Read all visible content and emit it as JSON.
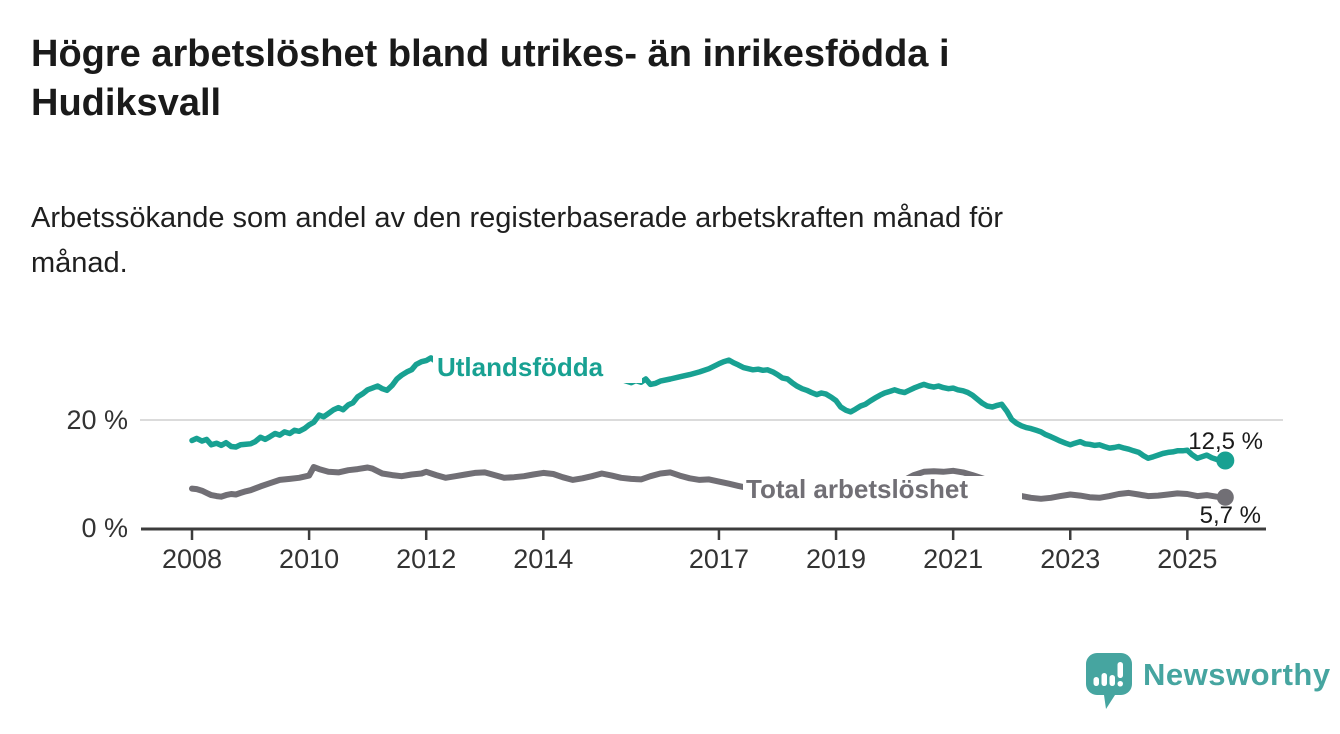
{
  "header": {
    "title": "Högre arbetslöshet bland utrikes- än inrikesfödda i\nHudiksvall",
    "subtitle": "Arbetssökande som andel av den registerbaserade arbetskraften månad för\nmånad."
  },
  "chart_data": {
    "type": "line",
    "title": "",
    "xlabel": "",
    "ylabel": "",
    "unit": "%",
    "x_range": [
      2008.0,
      2025.58
    ],
    "ylim": [
      0,
      34
    ],
    "x_ticks": [
      2008,
      2010,
      2012,
      2014,
      2017,
      2019,
      2021,
      2023,
      2025
    ],
    "y_ticks": [
      {
        "value": 0,
        "label": "0 %"
      },
      {
        "value": 20,
        "label": "20 %"
      }
    ],
    "y_gridlines": [
      20
    ],
    "legend_position": "inline-labels-on-line",
    "series": [
      {
        "name": "Utlandsfödda",
        "color": "#18a192",
        "end_value": 12.5,
        "end_label": "12,5 %",
        "points": [
          [
            2008.0,
            16.2
          ],
          [
            2008.08,
            16.6
          ],
          [
            2008.17,
            16.1
          ],
          [
            2008.25,
            16.4
          ],
          [
            2008.33,
            15.4
          ],
          [
            2008.42,
            15.7
          ],
          [
            2008.5,
            15.3
          ],
          [
            2008.58,
            15.8
          ],
          [
            2008.67,
            15.1
          ],
          [
            2008.75,
            15.0
          ],
          [
            2008.83,
            15.4
          ],
          [
            2008.92,
            15.5
          ],
          [
            2009.0,
            15.6
          ],
          [
            2009.08,
            16.0
          ],
          [
            2009.17,
            16.8
          ],
          [
            2009.25,
            16.4
          ],
          [
            2009.33,
            16.9
          ],
          [
            2009.42,
            17.5
          ],
          [
            2009.5,
            17.2
          ],
          [
            2009.58,
            17.8
          ],
          [
            2009.67,
            17.5
          ],
          [
            2009.75,
            18.1
          ],
          [
            2009.83,
            17.9
          ],
          [
            2009.92,
            18.4
          ],
          [
            2010.0,
            19.1
          ],
          [
            2010.08,
            19.6
          ],
          [
            2010.17,
            20.9
          ],
          [
            2010.25,
            20.6
          ],
          [
            2010.33,
            21.2
          ],
          [
            2010.42,
            21.9
          ],
          [
            2010.5,
            22.3
          ],
          [
            2010.58,
            21.9
          ],
          [
            2010.67,
            22.8
          ],
          [
            2010.75,
            23.2
          ],
          [
            2010.83,
            24.3
          ],
          [
            2010.92,
            24.9
          ],
          [
            2011.0,
            25.6
          ],
          [
            2011.08,
            25.9
          ],
          [
            2011.17,
            26.3
          ],
          [
            2011.25,
            25.8
          ],
          [
            2011.33,
            25.5
          ],
          [
            2011.42,
            26.4
          ],
          [
            2011.5,
            27.6
          ],
          [
            2011.58,
            28.3
          ],
          [
            2011.67,
            28.9
          ],
          [
            2011.75,
            29.3
          ],
          [
            2011.83,
            30.3
          ],
          [
            2011.92,
            30.8
          ],
          [
            2012.0,
            31.0
          ],
          [
            2012.08,
            31.5
          ],
          [
            2012.17,
            30.8
          ],
          [
            2012.25,
            31.2
          ],
          [
            2012.33,
            30.6
          ],
          [
            2012.5,
            30.4
          ],
          [
            2013.0,
            30.1
          ],
          [
            2013.5,
            29.8
          ],
          [
            2014.0,
            29.4
          ],
          [
            2014.5,
            29.1
          ],
          [
            2015.0,
            28.5
          ],
          [
            2015.25,
            27.8
          ],
          [
            2015.5,
            26.9
          ],
          [
            2015.58,
            27.3
          ],
          [
            2015.67,
            27.0
          ],
          [
            2015.75,
            27.6
          ],
          [
            2015.83,
            26.6
          ],
          [
            2015.92,
            26.8
          ],
          [
            2016.0,
            27.2
          ],
          [
            2016.17,
            27.6
          ],
          [
            2016.33,
            28.0
          ],
          [
            2016.5,
            28.4
          ],
          [
            2016.67,
            28.9
          ],
          [
            2016.83,
            29.5
          ],
          [
            2017.0,
            30.4
          ],
          [
            2017.08,
            30.8
          ],
          [
            2017.17,
            31.1
          ],
          [
            2017.25,
            30.6
          ],
          [
            2017.33,
            30.2
          ],
          [
            2017.42,
            29.7
          ],
          [
            2017.5,
            29.5
          ],
          [
            2017.58,
            29.3
          ],
          [
            2017.67,
            29.4
          ],
          [
            2017.75,
            29.2
          ],
          [
            2017.83,
            29.3
          ],
          [
            2017.92,
            28.9
          ],
          [
            2018.0,
            28.4
          ],
          [
            2018.08,
            27.8
          ],
          [
            2018.17,
            27.6
          ],
          [
            2018.25,
            26.9
          ],
          [
            2018.33,
            26.3
          ],
          [
            2018.42,
            25.8
          ],
          [
            2018.5,
            25.5
          ],
          [
            2018.58,
            25.1
          ],
          [
            2018.67,
            24.7
          ],
          [
            2018.75,
            25.0
          ],
          [
            2018.83,
            24.8
          ],
          [
            2018.92,
            24.2
          ],
          [
            2019.0,
            23.6
          ],
          [
            2019.08,
            22.4
          ],
          [
            2019.17,
            21.8
          ],
          [
            2019.25,
            21.5
          ],
          [
            2019.33,
            22.0
          ],
          [
            2019.42,
            22.6
          ],
          [
            2019.5,
            22.9
          ],
          [
            2019.58,
            23.5
          ],
          [
            2019.67,
            24.1
          ],
          [
            2019.75,
            24.6
          ],
          [
            2019.83,
            25.0
          ],
          [
            2019.92,
            25.3
          ],
          [
            2020.0,
            25.6
          ],
          [
            2020.08,
            25.3
          ],
          [
            2020.17,
            25.1
          ],
          [
            2020.25,
            25.5
          ],
          [
            2020.33,
            25.9
          ],
          [
            2020.42,
            26.3
          ],
          [
            2020.5,
            26.6
          ],
          [
            2020.58,
            26.3
          ],
          [
            2020.67,
            26.1
          ],
          [
            2020.75,
            26.3
          ],
          [
            2020.83,
            26.0
          ],
          [
            2020.92,
            25.8
          ],
          [
            2021.0,
            25.9
          ],
          [
            2021.08,
            25.6
          ],
          [
            2021.17,
            25.4
          ],
          [
            2021.25,
            25.1
          ],
          [
            2021.33,
            24.6
          ],
          [
            2021.42,
            23.8
          ],
          [
            2021.5,
            23.1
          ],
          [
            2021.58,
            22.6
          ],
          [
            2021.67,
            22.4
          ],
          [
            2021.75,
            22.7
          ],
          [
            2021.83,
            22.9
          ],
          [
            2021.92,
            21.6
          ],
          [
            2022.0,
            20.1
          ],
          [
            2022.08,
            19.4
          ],
          [
            2022.17,
            18.9
          ],
          [
            2022.25,
            18.6
          ],
          [
            2022.33,
            18.4
          ],
          [
            2022.42,
            18.1
          ],
          [
            2022.5,
            17.8
          ],
          [
            2022.58,
            17.3
          ],
          [
            2022.67,
            16.9
          ],
          [
            2022.75,
            16.5
          ],
          [
            2022.83,
            16.1
          ],
          [
            2022.92,
            15.7
          ],
          [
            2023.0,
            15.4
          ],
          [
            2023.08,
            15.7
          ],
          [
            2023.17,
            16.0
          ],
          [
            2023.25,
            15.6
          ],
          [
            2023.33,
            15.5
          ],
          [
            2023.42,
            15.3
          ],
          [
            2023.5,
            15.4
          ],
          [
            2023.58,
            15.1
          ],
          [
            2023.67,
            14.8
          ],
          [
            2023.75,
            14.9
          ],
          [
            2023.83,
            15.1
          ],
          [
            2023.92,
            14.8
          ],
          [
            2024.0,
            14.6
          ],
          [
            2024.08,
            14.3
          ],
          [
            2024.17,
            14.0
          ],
          [
            2024.25,
            13.4
          ],
          [
            2024.33,
            12.9
          ],
          [
            2024.42,
            13.2
          ],
          [
            2024.5,
            13.5
          ],
          [
            2024.58,
            13.8
          ],
          [
            2024.67,
            14.0
          ],
          [
            2024.75,
            14.1
          ],
          [
            2024.83,
            14.3
          ],
          [
            2024.92,
            14.3
          ],
          [
            2025.0,
            14.4
          ],
          [
            2025.08,
            13.6
          ],
          [
            2025.17,
            12.9
          ],
          [
            2025.25,
            13.2
          ],
          [
            2025.33,
            13.5
          ],
          [
            2025.42,
            13.0
          ],
          [
            2025.5,
            12.7
          ],
          [
            2025.58,
            12.5
          ]
        ]
      },
      {
        "name": "Total arbetslöshet",
        "color": "#716f75",
        "end_value": 5.7,
        "end_label": "5,7 %",
        "points": [
          [
            2008.0,
            7.3
          ],
          [
            2008.08,
            7.2
          ],
          [
            2008.17,
            6.9
          ],
          [
            2008.25,
            6.5
          ],
          [
            2008.33,
            6.1
          ],
          [
            2008.42,
            5.9
          ],
          [
            2008.5,
            5.8
          ],
          [
            2008.58,
            6.1
          ],
          [
            2008.67,
            6.3
          ],
          [
            2008.75,
            6.2
          ],
          [
            2008.83,
            6.5
          ],
          [
            2008.92,
            6.8
          ],
          [
            2009.0,
            7.0
          ],
          [
            2009.17,
            7.7
          ],
          [
            2009.33,
            8.3
          ],
          [
            2009.5,
            8.9
          ],
          [
            2009.67,
            9.1
          ],
          [
            2009.83,
            9.3
          ],
          [
            2010.0,
            9.7
          ],
          [
            2010.08,
            11.3
          ],
          [
            2010.17,
            10.9
          ],
          [
            2010.33,
            10.4
          ],
          [
            2010.5,
            10.3
          ],
          [
            2010.67,
            10.7
          ],
          [
            2010.83,
            10.9
          ],
          [
            2011.0,
            11.2
          ],
          [
            2011.08,
            11.0
          ],
          [
            2011.25,
            10.1
          ],
          [
            2011.42,
            9.8
          ],
          [
            2011.58,
            9.6
          ],
          [
            2011.75,
            9.9
          ],
          [
            2011.92,
            10.1
          ],
          [
            2012.0,
            10.4
          ],
          [
            2012.17,
            9.8
          ],
          [
            2012.33,
            9.3
          ],
          [
            2012.5,
            9.6
          ],
          [
            2012.67,
            9.9
          ],
          [
            2012.83,
            10.2
          ],
          [
            2013.0,
            10.3
          ],
          [
            2013.17,
            9.8
          ],
          [
            2013.33,
            9.3
          ],
          [
            2013.5,
            9.4
          ],
          [
            2013.67,
            9.6
          ],
          [
            2013.83,
            9.9
          ],
          [
            2014.0,
            10.2
          ],
          [
            2014.17,
            10.0
          ],
          [
            2014.33,
            9.4
          ],
          [
            2014.5,
            8.9
          ],
          [
            2014.67,
            9.2
          ],
          [
            2014.83,
            9.6
          ],
          [
            2015.0,
            10.1
          ],
          [
            2015.17,
            9.7
          ],
          [
            2015.33,
            9.3
          ],
          [
            2015.5,
            9.1
          ],
          [
            2015.67,
            9.0
          ],
          [
            2015.83,
            9.6
          ],
          [
            2016.0,
            10.1
          ],
          [
            2016.17,
            10.3
          ],
          [
            2016.33,
            9.7
          ],
          [
            2016.5,
            9.2
          ],
          [
            2016.67,
            8.9
          ],
          [
            2016.83,
            9.0
          ],
          [
            2017.0,
            8.6
          ],
          [
            2017.17,
            8.2
          ],
          [
            2017.33,
            7.8
          ],
          [
            2017.5,
            7.4
          ],
          [
            2017.67,
            7.6
          ],
          [
            2017.83,
            7.9
          ],
          [
            2018.0,
            8.0
          ],
          [
            2018.17,
            7.6
          ],
          [
            2018.33,
            7.2
          ],
          [
            2018.5,
            7.1
          ],
          [
            2018.67,
            7.3
          ],
          [
            2018.83,
            7.6
          ],
          [
            2019.0,
            7.8
          ],
          [
            2019.17,
            7.3
          ],
          [
            2019.33,
            7.0
          ],
          [
            2019.5,
            7.2
          ],
          [
            2019.67,
            7.4
          ],
          [
            2019.83,
            7.6
          ],
          [
            2020.0,
            7.8
          ],
          [
            2020.17,
            8.9
          ],
          [
            2020.33,
            9.8
          ],
          [
            2020.5,
            10.4
          ],
          [
            2020.67,
            10.5
          ],
          [
            2020.83,
            10.4
          ],
          [
            2021.0,
            10.6
          ],
          [
            2021.17,
            10.3
          ],
          [
            2021.33,
            9.8
          ],
          [
            2021.5,
            9.2
          ],
          [
            2021.67,
            8.6
          ],
          [
            2021.83,
            7.6
          ],
          [
            2022.0,
            6.2
          ],
          [
            2022.17,
            5.9
          ],
          [
            2022.33,
            5.6
          ],
          [
            2022.5,
            5.4
          ],
          [
            2022.67,
            5.6
          ],
          [
            2022.83,
            5.9
          ],
          [
            2023.0,
            6.2
          ],
          [
            2023.17,
            6.0
          ],
          [
            2023.33,
            5.7
          ],
          [
            2023.5,
            5.6
          ],
          [
            2023.67,
            5.9
          ],
          [
            2023.83,
            6.3
          ],
          [
            2024.0,
            6.5
          ],
          [
            2024.17,
            6.2
          ],
          [
            2024.33,
            5.9
          ],
          [
            2024.5,
            6.0
          ],
          [
            2024.67,
            6.2
          ],
          [
            2024.83,
            6.4
          ],
          [
            2025.0,
            6.3
          ],
          [
            2025.17,
            5.9
          ],
          [
            2025.33,
            6.1
          ],
          [
            2025.5,
            5.8
          ],
          [
            2025.58,
            5.7
          ]
        ]
      }
    ]
  },
  "colors": {
    "accent_teal": "#18a192",
    "series_gray": "#716f75",
    "gridline": "#dbdbdb",
    "axis": "#3c3c3c",
    "text_dark": "#1a1a1a",
    "tick_text": "#333333",
    "logo_teal": "#46a5a0"
  },
  "footer": {
    "brand": "Newsworthy",
    "logo_icon": "bar-chart-speech-bubble-icon"
  }
}
